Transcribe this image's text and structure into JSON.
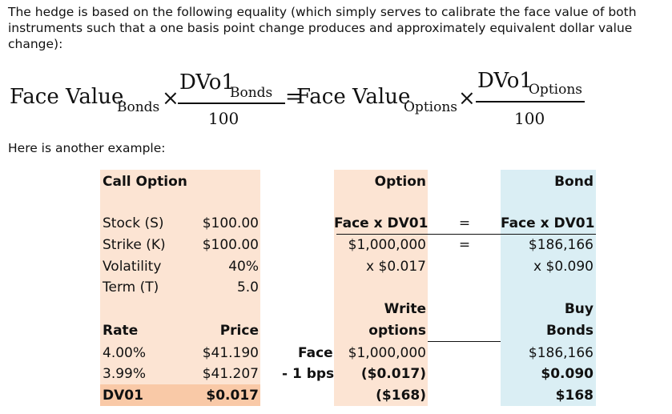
{
  "intro": "The hedge is based on the following equality (which simply serves to calibrate the face value of both instruments such that a one basis point change produces and approximately equivalent dollar value change):",
  "formula": {
    "left_main": "Face Value",
    "left_sub": "Bonds",
    "times": "×",
    "left_num_main": "DVo1",
    "left_num_sub": "Bonds",
    "left_den": "100",
    "equals": "=",
    "right_main": "Face Value",
    "right_sub": "Options",
    "right_num_main": "DVo1",
    "right_num_sub": "Options",
    "right_den": "100"
  },
  "example_label": "Here is another example:",
  "call_option": {
    "header": "Call Option",
    "params": [
      {
        "label": "Stock (S)",
        "value": "$100.00"
      },
      {
        "label": "Strike (K)",
        "value": "$100.00"
      },
      {
        "label": "Volatility",
        "value": "40%"
      },
      {
        "label": "Term (T)",
        "value": "5.0"
      }
    ],
    "rate_header": "Rate",
    "price_header": "Price",
    "rows": [
      {
        "rate": "4.00%",
        "price": "$41.190"
      },
      {
        "rate": "3.99%",
        "price": "$41.207"
      }
    ],
    "dv01_label": "DV01",
    "dv01_value": "$0.017"
  },
  "option": {
    "header": "Option",
    "face_dv01": "Face x DV01",
    "face": "$1,000,000",
    "dv01": "x $0.017",
    "action_1": "Write",
    "action_2": "options",
    "face_row": "$1,000,000",
    "change_row": "($0.017)",
    "total": "($168)"
  },
  "side_labels": {
    "face": "Face",
    "bps": "- 1 bps"
  },
  "equals_signs": [
    "=",
    "="
  ],
  "bond": {
    "header": "Bond",
    "face_dv01": "Face x DV01",
    "face": "$186,166",
    "dv01": "x $0.090",
    "action_1": "Buy",
    "action_2": "Bonds",
    "face_row": "$186,166",
    "change_row": "$0.090",
    "total": "$168"
  }
}
